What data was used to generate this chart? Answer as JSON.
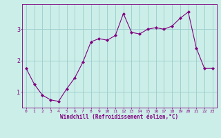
{
  "x": [
    0,
    1,
    2,
    3,
    4,
    5,
    6,
    7,
    8,
    9,
    10,
    11,
    12,
    13,
    14,
    15,
    16,
    17,
    18,
    19,
    20,
    21,
    22,
    23
  ],
  "y": [
    1.75,
    1.25,
    0.9,
    0.75,
    0.7,
    1.1,
    1.45,
    1.95,
    2.6,
    2.7,
    2.65,
    2.8,
    3.5,
    2.9,
    2.85,
    3.0,
    3.05,
    3.0,
    3.1,
    3.35,
    3.55,
    2.4,
    1.75,
    1.75
  ],
  "xlabel": "Windchill (Refroidissement éolien,°C)",
  "line_color": "#800080",
  "marker_color": "#800080",
  "bg_color": "#cceee8",
  "grid_color": "#99cccc",
  "axis_color": "#800080",
  "tick_color": "#800080",
  "xlabel_color": "#800080",
  "ylim": [
    0.5,
    3.8
  ],
  "xlim": [
    -0.5,
    23.5
  ],
  "yticks": [
    1,
    2,
    3
  ],
  "xticks": [
    0,
    1,
    2,
    3,
    4,
    5,
    6,
    7,
    8,
    9,
    10,
    11,
    12,
    13,
    14,
    15,
    16,
    17,
    18,
    19,
    20,
    21,
    22,
    23
  ]
}
